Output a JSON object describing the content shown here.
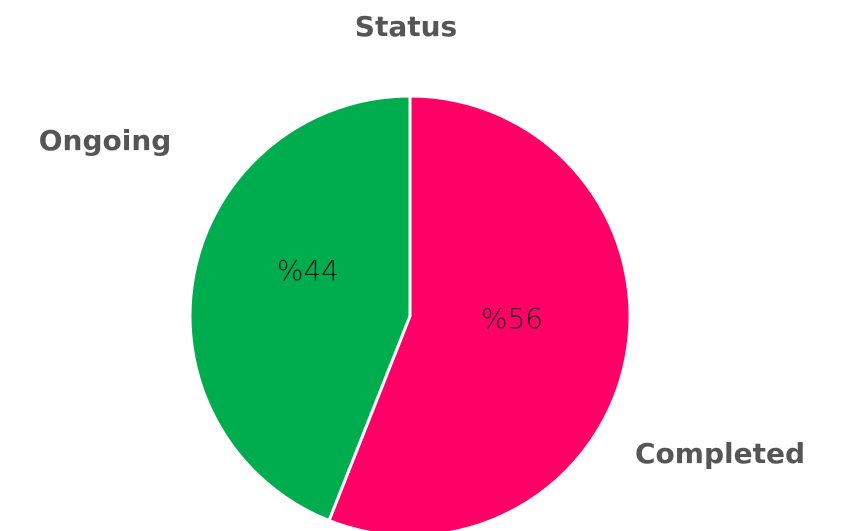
{
  "chart_data": {
    "type": "pie",
    "title": "Status",
    "categories": [
      "Completed",
      "Ongoing"
    ],
    "values": [
      56,
      44
    ],
    "value_labels": [
      "%56",
      "%44"
    ],
    "colors": [
      "#ff0066",
      "#00ad4e"
    ]
  }
}
